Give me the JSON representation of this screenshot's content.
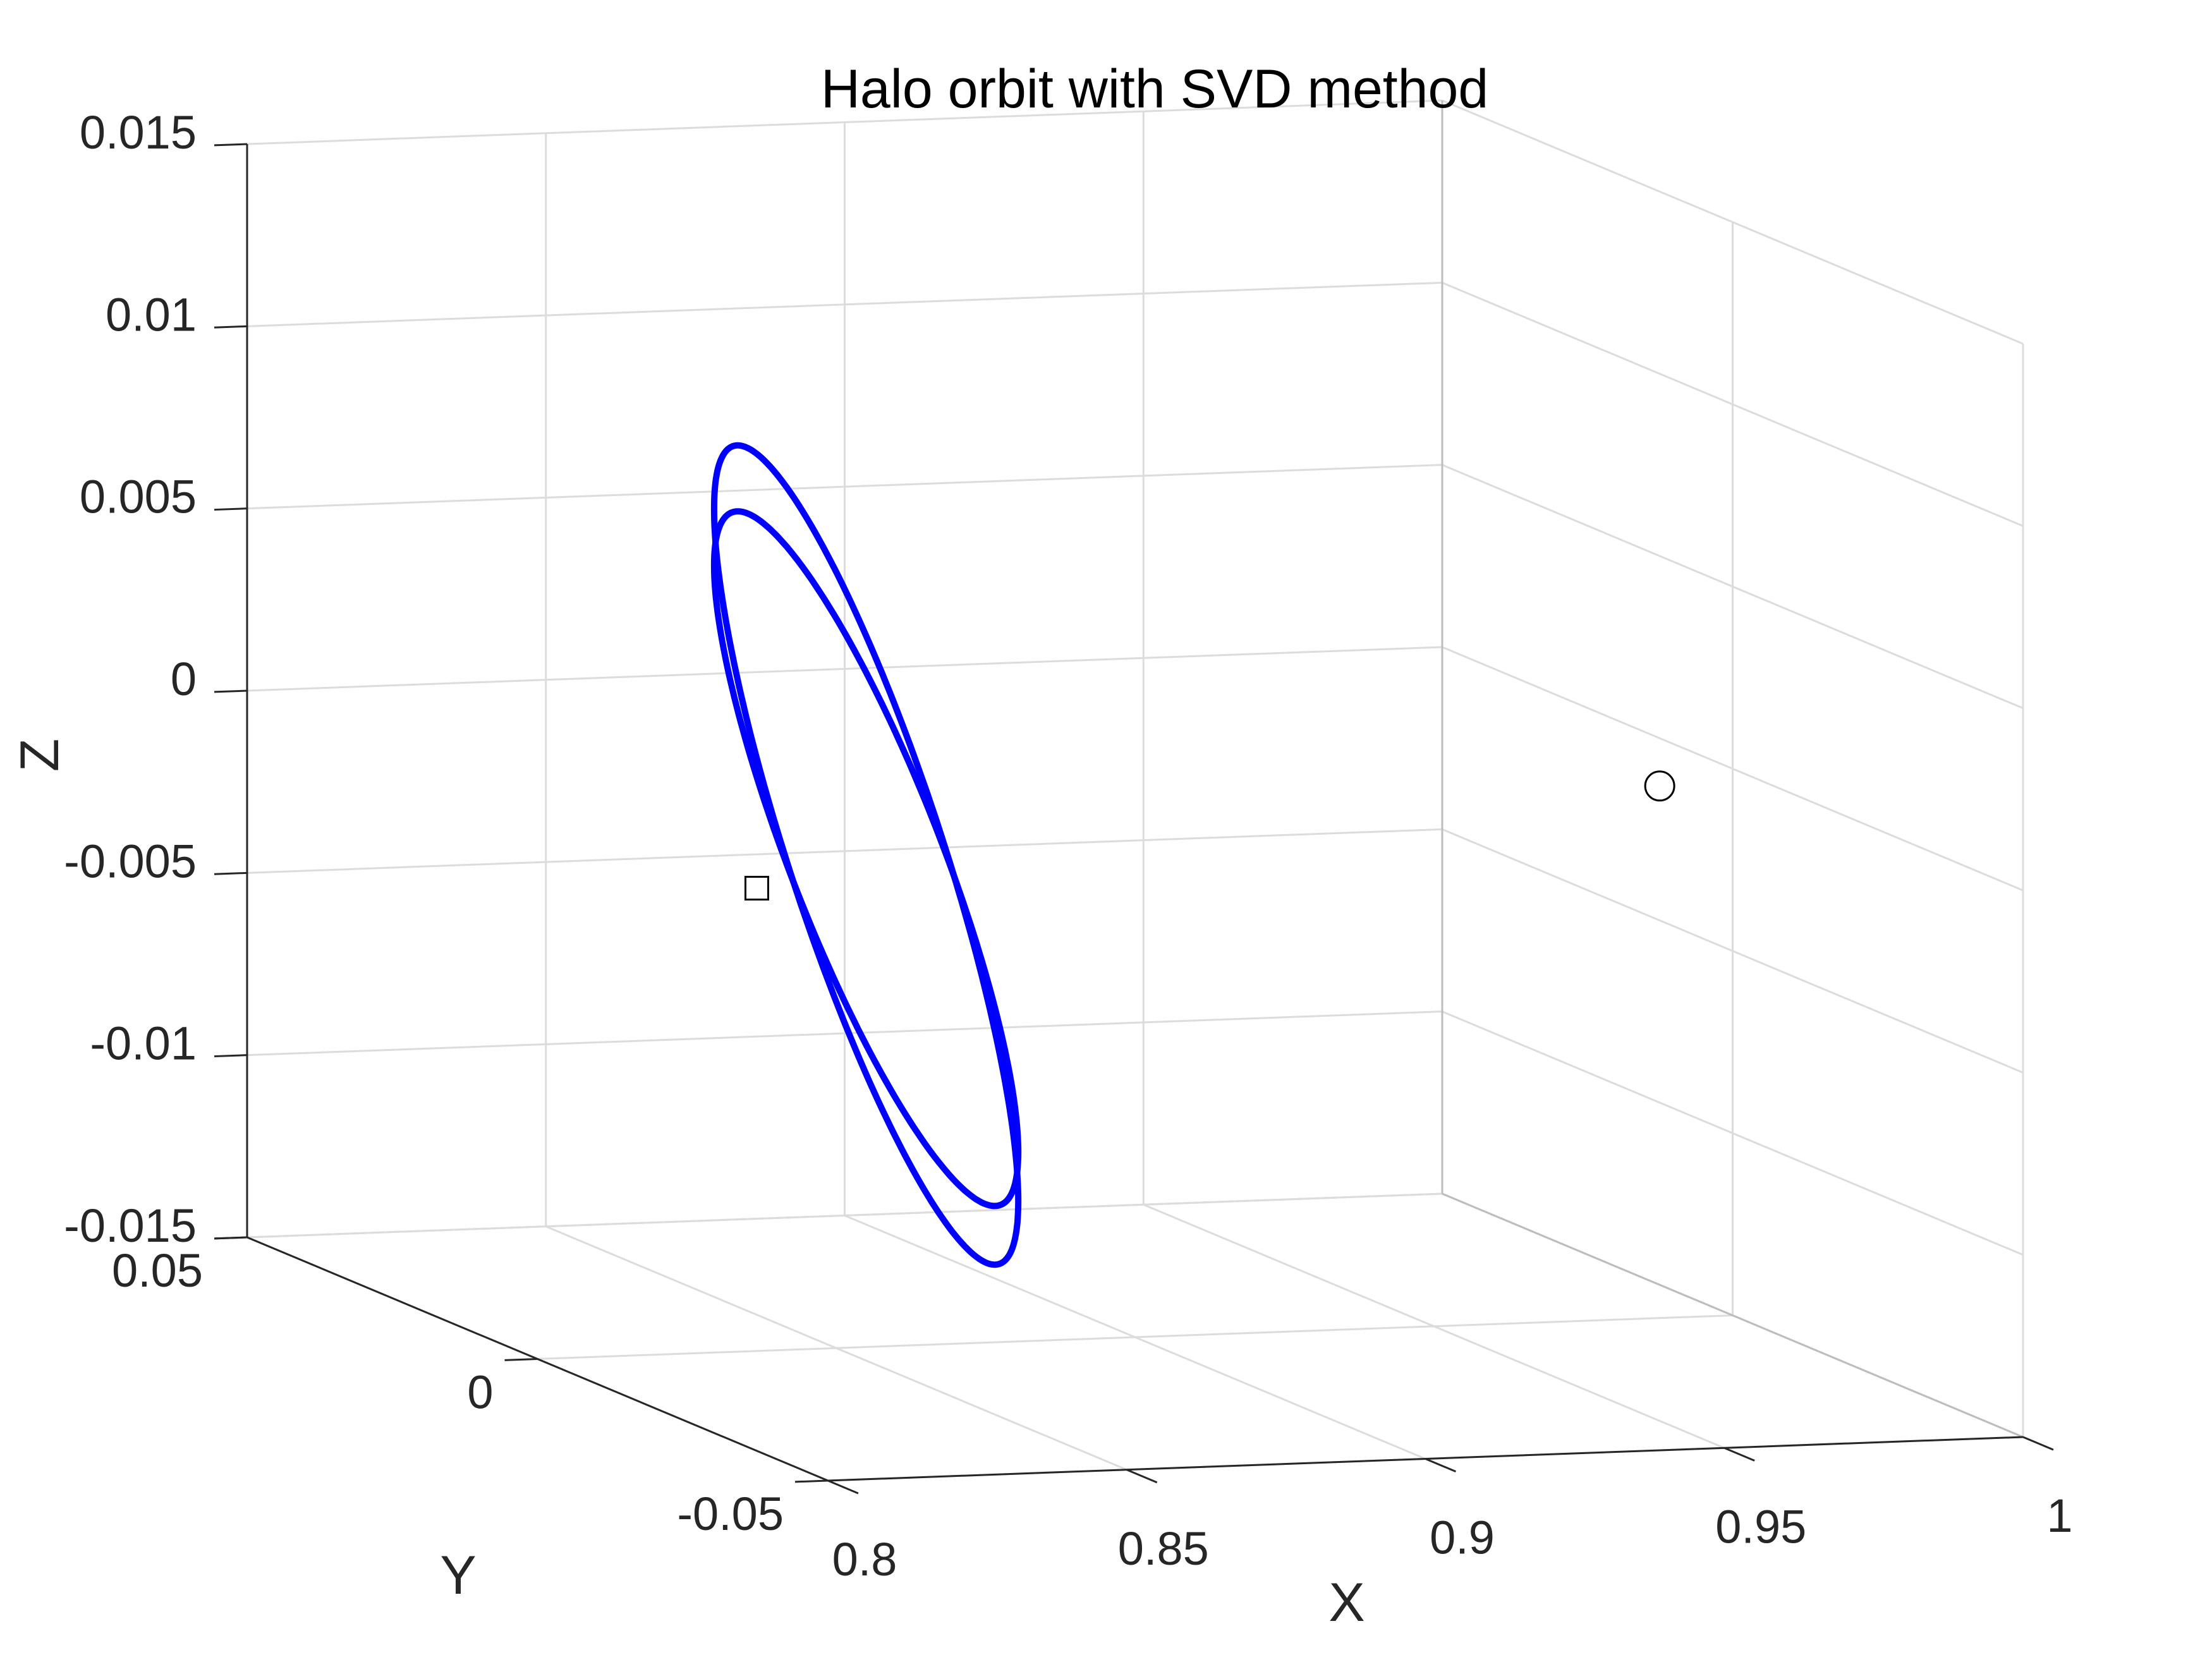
{
  "chart_data": {
    "type": "line",
    "title": "Halo orbit with SVD method",
    "xlabel": "X",
    "ylabel": "Y",
    "zlabel": "Z",
    "xlim": [
      0.8,
      1.0
    ],
    "ylim": [
      -0.05,
      0.05
    ],
    "zlim": [
      -0.015,
      0.015
    ],
    "x_ticks": [
      "0.8",
      "0.85",
      "0.9",
      "0.95",
      "1"
    ],
    "y_ticks": [
      "-0.05",
      "0",
      "0.05"
    ],
    "z_ticks": [
      "-0.015",
      "-0.01",
      "-0.005",
      "0",
      "0.005",
      "0.01",
      "0.015"
    ],
    "grid": true,
    "projection": "3d",
    "series": [
      {
        "color": "#0000ff",
        "description": "two overlapping revolutions of a halo orbit",
        "loops": [
          {
            "x_range": [
              0.82,
              0.89
            ],
            "z_range": [
              -0.0128,
              0.0098
            ]
          },
          {
            "x_range": [
              0.82,
              0.89
            ],
            "z_range": [
              -0.0112,
              0.008
            ]
          }
        ]
      }
    ],
    "markers": [
      {
        "shape": "square",
        "x": 0.8367,
        "y": 0.0,
        "z": -0.0023,
        "color": "#000000"
      },
      {
        "shape": "circle",
        "x": 0.9878,
        "y": 0.0,
        "z": -0.0004,
        "color": "#000000"
      }
    ]
  }
}
